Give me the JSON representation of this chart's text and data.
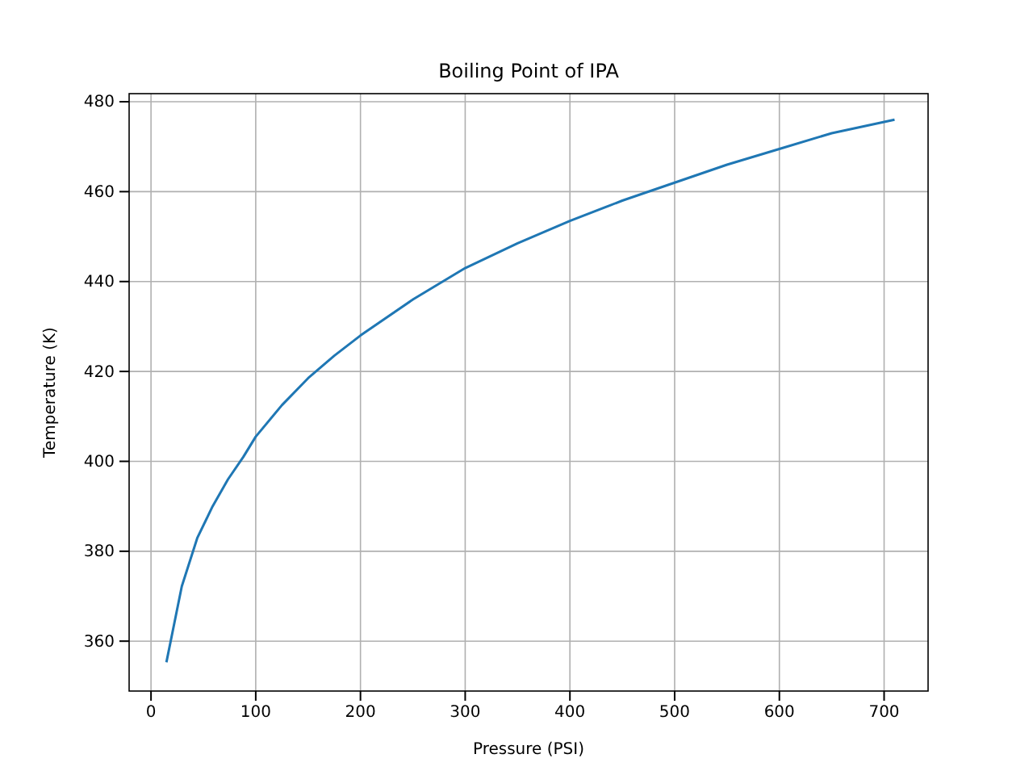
{
  "chart_data": {
    "type": "line",
    "title": "Boiling Point of IPA",
    "xlabel": "Pressure (PSI)",
    "ylabel": "Temperature (K)",
    "series": [
      {
        "color": "#1f77b4",
        "x": [
          14.7,
          29.4,
          44.1,
          58.8,
          73.5,
          88.2,
          100,
          125,
          150,
          175,
          200,
          250,
          300,
          350,
          400,
          450,
          500,
          550,
          600,
          650,
          710
        ],
        "values": [
          355.3,
          372.2,
          382.9,
          390,
          396,
          401,
          405.5,
          412.5,
          418.5,
          423.5,
          428,
          436,
          443,
          448.5,
          453.5,
          458,
          462,
          466,
          469.5,
          473,
          476
        ]
      }
    ],
    "xlim": [
      -20.9,
      742
    ],
    "ylim": [
      348.9,
      481.8
    ],
    "xticks": [
      0,
      100,
      200,
      300,
      400,
      500,
      600,
      700
    ],
    "yticks": [
      360,
      380,
      400,
      420,
      440,
      460,
      480
    ],
    "grid": true,
    "line_style": "solid"
  }
}
